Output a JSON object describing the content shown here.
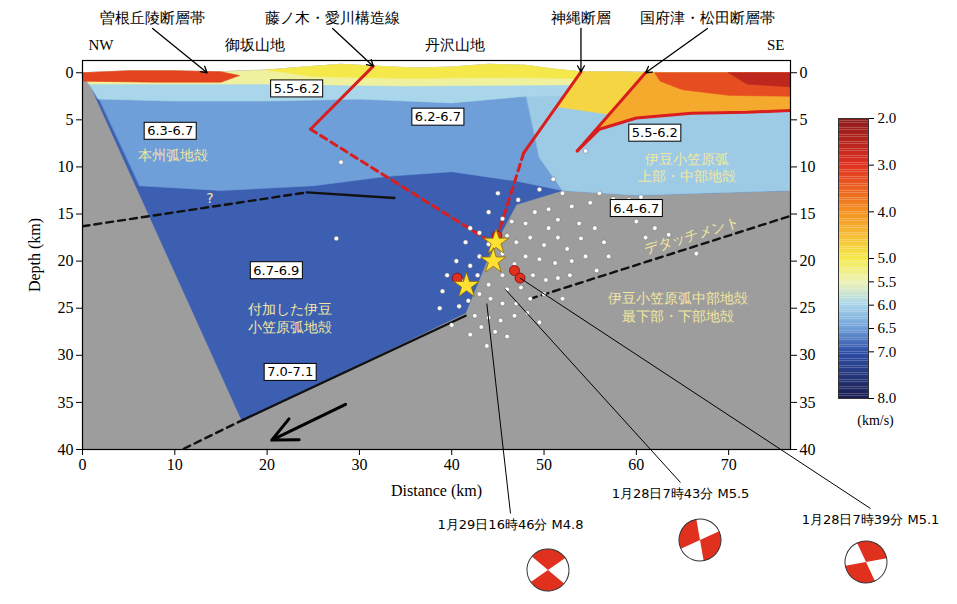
{
  "chart_data": {
    "type": "section",
    "x_label": "Distance (km)",
    "y_label": "Depth (km)",
    "xlim": [
      0,
      76.7
    ],
    "xticks": [
      0,
      10,
      20,
      30,
      40,
      50,
      60,
      70
    ],
    "ylim": [
      -1.3,
      40
    ],
    "yticks": [
      0,
      5,
      10,
      15,
      20,
      25,
      30,
      35,
      40
    ],
    "y2ticks": [
      0,
      5,
      10,
      15,
      20,
      25,
      30,
      35,
      40
    ],
    "direction_labels": {
      "left": "NW",
      "right": "SE"
    },
    "mountains": [
      {
        "label": "御坂山地",
        "x": 18.7
      },
      {
        "label": "丹沢山地",
        "x": 40.4
      }
    ],
    "faults": [
      {
        "name": "曽根丘陵断層帯",
        "label_x": 7.6,
        "surface": [
          13.5,
          0
        ]
      },
      {
        "name": "藤ノ木・愛川構造線",
        "label_x": 27.1,
        "surface": [
          31.5,
          -0.7
        ],
        "segments": [
          {
            "line_style": "solid",
            "points": [
              [
                31.5,
                -0.7
              ],
              [
                24.7,
                6.0
              ]
            ]
          },
          {
            "line_style": "dashed",
            "points": [
              [
                24.7,
                6.0
              ],
              [
                44.3,
                18.0
              ]
            ]
          }
        ]
      },
      {
        "name": "神縄断層",
        "label_x": 54.0,
        "surface": [
          54,
          -0.1
        ],
        "segments": [
          {
            "line_style": "solid",
            "points": [
              [
                54,
                -0.1
              ],
              [
                47.8,
                8.5
              ]
            ]
          },
          {
            "line_style": "dashed",
            "points": [
              [
                47.8,
                8.5
              ],
              [
                45,
                17.2
              ]
            ]
          }
        ]
      },
      {
        "name": "国府津・松田断層帯",
        "label_x": 67.7,
        "surface": [
          61,
          0
        ],
        "segments": [
          {
            "line_style": "solid",
            "points": [
              [
                61,
                0
              ],
              [
                53.6,
                8.3
              ]
            ]
          },
          {
            "line_style": "solid",
            "points": [
              [
                53.6,
                8.3
              ],
              [
                56,
                6.0
              ],
              [
                60,
                4.8
              ],
              [
                66,
                4.3
              ],
              [
                72,
                4.2
              ],
              [
                76.7,
                4.0
              ]
            ]
          }
        ]
      }
    ],
    "topography": [
      [
        0,
        0
      ],
      [
        5,
        -0.2
      ],
      [
        10,
        -0.2
      ],
      [
        15,
        -0.1
      ],
      [
        20,
        -0.3
      ],
      [
        24,
        -0.6
      ],
      [
        28,
        -0.9
      ],
      [
        32,
        -0.7
      ],
      [
        36,
        -0.5
      ],
      [
        40,
        -0.6
      ],
      [
        44,
        -0.9
      ],
      [
        48,
        -0.8
      ],
      [
        51,
        -0.4
      ],
      [
        54,
        -0.1
      ],
      [
        58,
        -0.1
      ],
      [
        65,
        0
      ],
      [
        76.7,
        0
      ]
    ],
    "velocity_regions": [
      {
        "v": 6.9,
        "points": [
          [
            0.5,
            0.6
          ],
          [
            17.3,
            37
          ],
          [
            41.5,
            25.5
          ],
          [
            44,
            19.5
          ],
          [
            47,
            14
          ],
          [
            52,
            12.5
          ],
          [
            60,
            13
          ],
          [
            76.7,
            12.5
          ],
          [
            76.7,
            0
          ],
          [
            0,
            0
          ]
        ]
      },
      {
        "v": 6.5,
        "points": [
          [
            1.2,
            1.5
          ],
          [
            76.7,
            1.5
          ],
          [
            76.7,
            12.5
          ],
          [
            60,
            13
          ],
          [
            52,
            12.5
          ],
          [
            47,
            11.5
          ],
          [
            40,
            10.5
          ],
          [
            33,
            11
          ],
          [
            25,
            12
          ],
          [
            15,
            12.5
          ],
          [
            6.2,
            12
          ]
        ]
      },
      {
        "v": 6.1,
        "points": [
          [
            48,
            2
          ],
          [
            76.7,
            2
          ],
          [
            76.7,
            12.5
          ],
          [
            60,
            13
          ],
          [
            52,
            12.5
          ],
          [
            49.5,
            9
          ]
        ]
      },
      {
        "v": 6.0,
        "points": [
          [
            0.6,
            1
          ],
          [
            76.7,
            1
          ],
          [
            76.7,
            2.3
          ],
          [
            60,
            2.3
          ],
          [
            48,
            2.5
          ],
          [
            40,
            3.2
          ],
          [
            30,
            2.8
          ],
          [
            20,
            3
          ],
          [
            10,
            3
          ],
          [
            1.7,
            2.8
          ]
        ]
      },
      {
        "v": 5.4,
        "points": [
          [
            0,
            0
          ],
          [
            5,
            -0.2
          ],
          [
            10,
            -0.2
          ],
          [
            15,
            -0.1
          ],
          [
            20,
            -0.3
          ],
          [
            24,
            -0.6
          ],
          [
            28,
            -0.9
          ],
          [
            32,
            -0.7
          ],
          [
            36,
            -0.5
          ],
          [
            40,
            -0.6
          ],
          [
            44,
            -0.9
          ],
          [
            48,
            -0.8
          ],
          [
            51,
            -0.4
          ],
          [
            54,
            -0.1
          ],
          [
            58,
            -0.1
          ],
          [
            65,
            0
          ],
          [
            76.7,
            0
          ],
          [
            76.7,
            1.2
          ],
          [
            50,
            1.3
          ],
          [
            35,
            1.4
          ],
          [
            20,
            1.2
          ],
          [
            0.7,
            1.2
          ]
        ]
      },
      {
        "v": 5.0,
        "points": [
          [
            20,
            -0.3
          ],
          [
            24,
            -0.6
          ],
          [
            28,
            -0.9
          ],
          [
            32,
            -0.7
          ],
          [
            36,
            -0.5
          ],
          [
            40,
            -0.6
          ],
          [
            44,
            -0.9
          ],
          [
            48,
            -0.8
          ],
          [
            51,
            -0.4
          ],
          [
            54,
            -0.1
          ],
          [
            54,
            0.6
          ],
          [
            45,
            0.5
          ],
          [
            35,
            0.6
          ],
          [
            25,
            0.4
          ]
        ]
      },
      {
        "v": 3.2,
        "points": [
          [
            0,
            0
          ],
          [
            5,
            -0.2
          ],
          [
            10,
            -0.2
          ],
          [
            15,
            -0.1
          ],
          [
            17,
            0.3
          ],
          [
            15,
            1.0
          ],
          [
            8,
            1.0
          ],
          [
            0,
            0.9
          ]
        ]
      },
      {
        "v": 4.8,
        "points": [
          [
            54,
            -0.1
          ],
          [
            58,
            -0.1
          ],
          [
            61,
            0
          ],
          [
            57,
            4.4
          ],
          [
            51.4,
            3.6
          ]
        ]
      },
      {
        "v": 4.3,
        "points": [
          [
            61,
            0
          ],
          [
            76.7,
            0
          ],
          [
            76.7,
            4.0
          ],
          [
            72,
            4.2
          ],
          [
            66,
            4.3
          ],
          [
            60,
            4.8
          ],
          [
            56,
            6.0
          ],
          [
            53.6,
            8.3
          ]
        ]
      },
      {
        "v": 3.3,
        "points": [
          [
            62,
            0
          ],
          [
            76.7,
            0
          ],
          [
            76.7,
            2.5
          ],
          [
            70,
            2.4
          ],
          [
            65,
            1.8
          ],
          [
            62.6,
            0.9
          ]
        ]
      },
      {
        "v": 2.6,
        "points": [
          [
            70,
            0
          ],
          [
            76.7,
            0
          ],
          [
            76.7,
            1.5
          ],
          [
            72,
            1.2
          ]
        ]
      }
    ],
    "boundaries": [
      {
        "line_style": "dashed",
        "points": [
          [
            0,
            16.3
          ],
          [
            24.3,
            12.7
          ]
        ]
      },
      {
        "line_style": "solid",
        "points": [
          [
            24.3,
            12.7
          ],
          [
            33.8,
            13.3
          ]
        ]
      },
      {
        "line_style": "solid",
        "points": [
          [
            17.5,
            36.8
          ],
          [
            41.5,
            25.8
          ]
        ]
      },
      {
        "line_style": "dashed",
        "points": [
          [
            17.5,
            36.8
          ],
          [
            10.8,
            40
          ]
        ]
      },
      {
        "line_style": "dashed",
        "points": [
          [
            48.5,
            24
          ],
          [
            76.7,
            15.2
          ]
        ]
      }
    ],
    "velocity_labels": [
      {
        "text": "5.5-6.2",
        "x": 23.2,
        "y": 1.7
      },
      {
        "text": "6.3-6.7",
        "x": 9.5,
        "y": 6.2
      },
      {
        "text": "6.2-6.7",
        "x": 38.5,
        "y": 4.7
      },
      {
        "text": "5.5-6.2",
        "x": 62,
        "y": 6.4
      },
      {
        "text": "6.4-6.7",
        "x": 60,
        "y": 14.4
      },
      {
        "text": "6.7-6.9",
        "x": 21,
        "y": 21
      },
      {
        "text": "7.0-7.1",
        "x": 22.5,
        "y": 31.8
      }
    ],
    "unit_labels": [
      {
        "lines": [
          "本州弧地殻"
        ],
        "x": 9.8,
        "y": 8.7
      },
      {
        "lines": [
          "?"
        ],
        "x": 13.8,
        "y": 13.2
      },
      {
        "lines": [
          "付加した伊豆",
          "小笠原弧地殻"
        ],
        "x": 22.5,
        "y": 26
      },
      {
        "lines": [
          "伊豆小笠原弧",
          "上部・中部地殻"
        ],
        "x": 65.5,
        "y": 10
      },
      {
        "lines": [
          "伊豆小笠原弧中部地殻",
          "最下部・下部地殻"
        ],
        "x": 64.5,
        "y": 24.8
      }
    ],
    "detachment_label": {
      "text": "デタッチメント",
      "x": 66,
      "y": 17.3
    },
    "arrow": {
      "from": [
        28.5,
        35.2
      ],
      "to": [
        20.5,
        39.0
      ]
    },
    "hypocenters": [
      [
        28,
        9.5
      ],
      [
        27.5,
        17.6
      ],
      [
        54.5,
        8.3
      ],
      [
        51,
        11.3
      ],
      [
        49.5,
        12.4
      ],
      [
        52,
        12.8
      ],
      [
        47.2,
        13.5
      ],
      [
        44,
        14.8
      ],
      [
        45.5,
        15.5
      ],
      [
        46.5,
        15.8
      ],
      [
        48,
        16
      ],
      [
        49,
        14.8
      ],
      [
        50.5,
        14.5
      ],
      [
        51.5,
        15.6
      ],
      [
        53,
        14.2
      ],
      [
        55,
        13.8
      ],
      [
        56,
        12.8
      ],
      [
        57.5,
        13.4
      ],
      [
        58.3,
        14.2
      ],
      [
        59.2,
        13.5
      ],
      [
        60.5,
        13.2
      ],
      [
        61.2,
        14.6
      ],
      [
        62.5,
        14
      ],
      [
        60,
        15.8
      ],
      [
        62,
        16.5
      ],
      [
        63.5,
        17.2
      ],
      [
        61,
        17.5
      ],
      [
        66.5,
        19.2
      ],
      [
        42,
        16.5
      ],
      [
        41.5,
        18
      ],
      [
        43,
        17
      ],
      [
        44,
        18.2
      ],
      [
        46,
        17.3
      ],
      [
        47,
        18
      ],
      [
        48.5,
        17.5
      ],
      [
        50,
        18.3
      ],
      [
        51.5,
        17.5
      ],
      [
        52.5,
        18.7
      ],
      [
        54,
        17.6
      ],
      [
        55.5,
        16.5
      ],
      [
        56.5,
        18
      ],
      [
        53,
        20
      ],
      [
        54.5,
        19.5
      ],
      [
        51.2,
        20.2
      ],
      [
        49.5,
        19.8
      ],
      [
        48,
        19.5
      ],
      [
        46.8,
        20.3
      ],
      [
        45.5,
        19.2
      ],
      [
        43,
        19.5
      ],
      [
        42,
        20.5
      ],
      [
        40.5,
        20
      ],
      [
        39.5,
        21.5
      ],
      [
        41,
        22
      ],
      [
        42.8,
        21.5
      ],
      [
        44,
        22.5
      ],
      [
        45.5,
        21.5
      ],
      [
        46,
        23
      ],
      [
        47.5,
        22.8
      ],
      [
        48.8,
        21.5
      ],
      [
        50.2,
        22
      ],
      [
        51.5,
        21.8
      ],
      [
        52.8,
        21.5
      ],
      [
        50,
        23.5
      ],
      [
        48.5,
        24
      ],
      [
        47,
        24.5
      ],
      [
        45.5,
        24.5
      ],
      [
        44.2,
        24
      ],
      [
        43,
        23.5
      ],
      [
        41.8,
        24.2
      ],
      [
        40.8,
        24.8
      ],
      [
        42.5,
        25.8
      ],
      [
        44,
        26
      ],
      [
        45.3,
        26.3
      ],
      [
        46.8,
        25.8
      ],
      [
        48.2,
        25.5
      ],
      [
        43.2,
        27
      ],
      [
        44.7,
        27.5
      ],
      [
        42,
        27.8
      ],
      [
        43.8,
        29
      ],
      [
        39,
        23.2
      ],
      [
        38.7,
        25
      ],
      [
        46,
        28
      ],
      [
        55.7,
        21
      ],
      [
        57,
        19.5
      ],
      [
        52,
        24
      ],
      [
        49.5,
        26.5
      ],
      [
        40,
        26.8
      ],
      [
        45,
        12.8
      ],
      [
        50.5,
        16.5
      ],
      [
        53.8,
        16
      ]
    ],
    "large_events": [
      [
        44.9,
        17.3
      ],
      [
        40.6,
        21.8
      ],
      [
        46.8,
        21.0
      ],
      [
        47.4,
        21.8
      ]
    ],
    "mainshocks": [
      [
        44.8,
        18.0
      ],
      [
        44.5,
        20.0
      ],
      [
        41.6,
        22.6
      ]
    ],
    "focal_mechanisms": [
      {
        "label": "1月29日16時46分 M4.8",
        "x": 43.8,
        "depth": 24.5
      },
      {
        "label": "1月28日7時43分 M5.5",
        "x": 45.8,
        "depth": 23
      },
      {
        "label": "1月28日7時39分 M5.1",
        "x": 47.4,
        "depth": 21.8
      }
    ],
    "colorbar": {
      "label": "(km/s)",
      "range": [
        2,
        8
      ],
      "ticks": [
        {
          "value": 2,
          "label": "2.0"
        },
        {
          "value": 3,
          "label": "3.0"
        },
        {
          "value": 4,
          "label": "4.0"
        },
        {
          "value": 5,
          "label": "5.0"
        },
        {
          "value": 5.5,
          "label": "5.5"
        },
        {
          "value": 6,
          "label": "6.0"
        },
        {
          "value": 6.5,
          "label": "6.5"
        },
        {
          "value": 7,
          "label": "7.0"
        },
        {
          "value": 8,
          "label": "8.0"
        }
      ],
      "stops": [
        2,
        3,
        4,
        5,
        5.5,
        6,
        6.5,
        7,
        8
      ],
      "colors": [
        "#8b1a1a",
        "#e03020",
        "#f59020",
        "#f5e84a",
        "#eef3b4",
        "#a9d6ea",
        "#6f9fd8",
        "#2f4fa8",
        "#1b1e4f"
      ]
    }
  }
}
